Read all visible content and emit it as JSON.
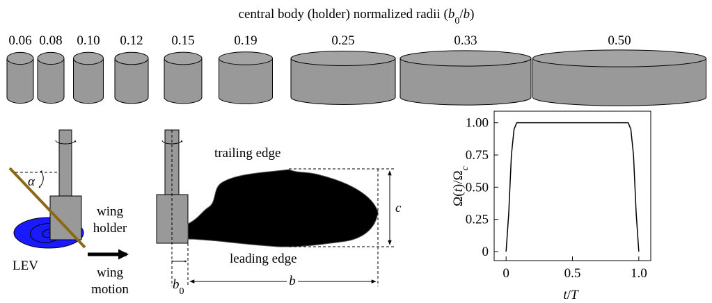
{
  "title_parts": [
    "central body (holder) normalized radii (",
    "b",
    "0",
    "/",
    "b",
    ")"
  ],
  "radii_labels": [
    "0.06",
    "0.08",
    "0.10",
    "0.12",
    "0.15",
    "0.19",
    "0.25",
    "0.33",
    "0.50"
  ],
  "labels": {
    "alpha": "α",
    "lev": "LEV",
    "wing_holder": [
      "wing",
      "holder"
    ],
    "wing_motion": [
      "wing",
      "motion"
    ],
    "trailing_edge": "trailing edge",
    "leading_edge": "leading edge",
    "c": "c",
    "b0": [
      "b",
      "0"
    ],
    "b": "b"
  },
  "chart_data": {
    "type": "line",
    "color": "#000000",
    "x": [
      0,
      0.02,
      0.04,
      0.06,
      0.08,
      0.1,
      0.9,
      0.92,
      0.94,
      0.96,
      0.98,
      1.0
    ],
    "values": [
      0,
      0.3,
      0.75,
      0.95,
      1.0,
      1.0,
      1.0,
      1.0,
      0.95,
      0.75,
      0.3,
      0
    ],
    "xlim": [
      -0.09,
      1.09
    ],
    "ylim": [
      -0.07,
      1.09
    ],
    "xticks": [
      0,
      0.5,
      {
        "value": 1.0,
        "label": "1.0"
      }
    ],
    "yticks": [
      0,
      0.25,
      {
        "value": 0.5,
        "label": "0.50"
      },
      0.75,
      {
        "value": 1.0,
        "label": "1.00"
      }
    ],
    "xlabel_parts": [
      "t",
      "/",
      "T"
    ],
    "ylabel_parts": [
      "Ω(",
      "t",
      ")/Ω",
      "c"
    ]
  }
}
